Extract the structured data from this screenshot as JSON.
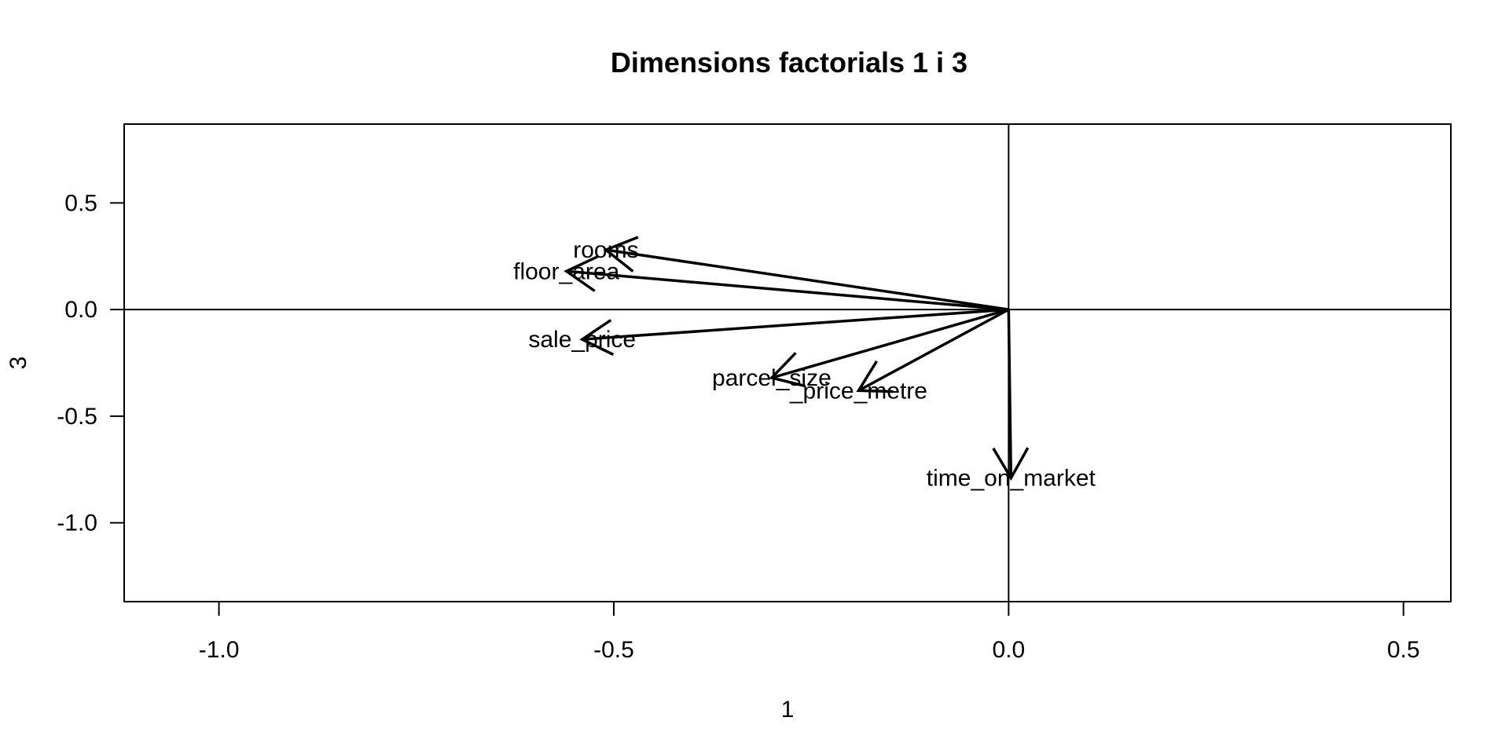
{
  "chart_data": {
    "type": "biplot",
    "title": "Dimensions factorials 1 i 3",
    "xlabel": "1",
    "ylabel": "3",
    "xlim": [
      -1.12,
      0.56
    ],
    "ylim": [
      -1.37,
      0.87
    ],
    "x_ticks": [
      -1.0,
      -0.5,
      0.0,
      0.5
    ],
    "x_tick_labels": [
      "-1.0",
      "-0.5",
      "0.0",
      "0.5"
    ],
    "y_ticks": [
      -1.0,
      -0.5,
      0.0,
      0.5
    ],
    "y_tick_labels": [
      "-1.0",
      "-0.5",
      "0.0",
      "0.5"
    ],
    "reference_lines": {
      "x": 0,
      "y": 0
    },
    "grid": false,
    "legend": "none",
    "vectors": [
      {
        "label": "rooms",
        "x": -0.51,
        "y": 0.28
      },
      {
        "label": "floor_area",
        "x": -0.56,
        "y": 0.18
      },
      {
        "label": "sale_price",
        "x": -0.54,
        "y": -0.14
      },
      {
        "label": "parcel_size",
        "x": -0.3,
        "y": -0.32
      },
      {
        "label": "_price_metre",
        "x": -0.19,
        "y": -0.38
      },
      {
        "label": "time_on_market",
        "x": 0.003,
        "y": -0.79
      }
    ],
    "colors": {
      "axes": "#000000",
      "vectors": "#000000",
      "background": "#ffffff"
    }
  }
}
